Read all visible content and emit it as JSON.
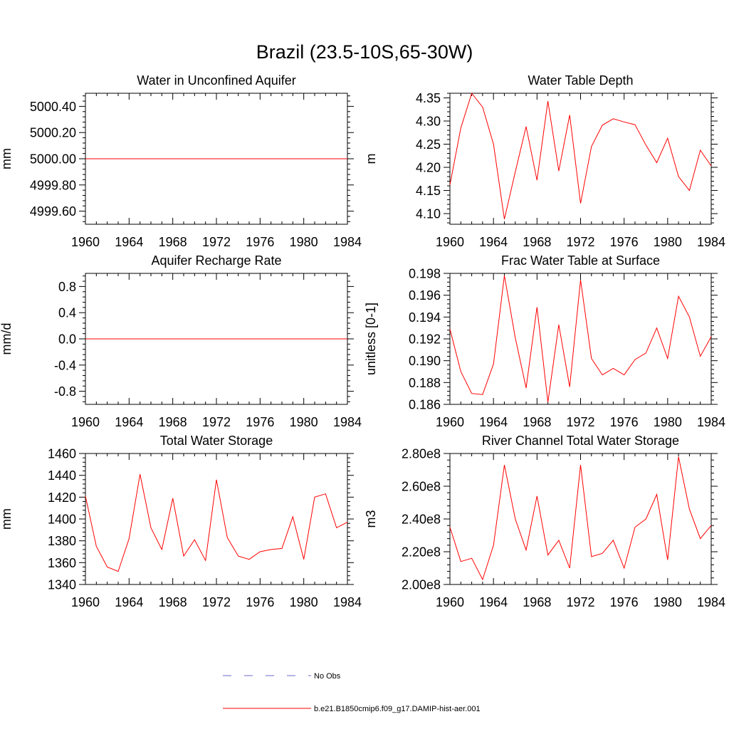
{
  "title": "Brazil (23.5-10S,65-30W)",
  "colors": {
    "model": "#ff0000",
    "obs": "#6a6acd",
    "axis": "#000000"
  },
  "legend": {
    "obs_label": "No Obs",
    "model_label": "b.e21.B1850cmip6.f09_g17.DAMIP-hist-aer.001"
  },
  "chart_data": [
    {
      "type": "line",
      "title": "Water in Unconfined Aquifer",
      "ylabel": "mm",
      "xlim": [
        1960,
        1984
      ],
      "ylim": [
        4999.5,
        5000.5
      ],
      "xticks": [
        1960,
        1964,
        1968,
        1972,
        1976,
        1980,
        1984
      ],
      "yticks": [
        4999.6,
        4999.8,
        5000.0,
        5000.2,
        5000.4
      ],
      "ytick_labels": [
        "4999.60",
        "4999.80",
        "5000.00",
        "5000.20",
        "5000.40"
      ],
      "x": [
        1960,
        1961,
        1962,
        1963,
        1964,
        1965,
        1966,
        1967,
        1968,
        1969,
        1970,
        1971,
        1972,
        1973,
        1974,
        1975,
        1976,
        1977,
        1978,
        1979,
        1980,
        1981,
        1982,
        1983,
        1984
      ],
      "series": [
        {
          "name": "b.e21.B1850cmip6.f09_g17.DAMIP-hist-aer.001",
          "values": [
            5000,
            5000,
            5000,
            5000,
            5000,
            5000,
            5000,
            5000,
            5000,
            5000,
            5000,
            5000,
            5000,
            5000,
            5000,
            5000,
            5000,
            5000,
            5000,
            5000,
            5000,
            5000,
            5000,
            5000,
            5000
          ]
        }
      ]
    },
    {
      "type": "line",
      "title": "Water Table Depth",
      "ylabel": "m",
      "xlim": [
        1960,
        1984
      ],
      "ylim": [
        4.077,
        4.36
      ],
      "xticks": [
        1960,
        1964,
        1968,
        1972,
        1976,
        1980,
        1984
      ],
      "yticks": [
        4.1,
        4.15,
        4.2,
        4.25,
        4.3,
        4.35
      ],
      "ytick_labels": [
        "4.10",
        "4.15",
        "4.20",
        "4.25",
        "4.30",
        "4.35"
      ],
      "x": [
        1960,
        1961,
        1962,
        1963,
        1964,
        1965,
        1966,
        1967,
        1968,
        1969,
        1970,
        1971,
        1972,
        1973,
        1974,
        1975,
        1976,
        1977,
        1978,
        1979,
        1980,
        1981,
        1982,
        1983,
        1984
      ],
      "series": [
        {
          "name": "b.e21.B1850cmip6.f09_g17.DAMIP-hist-aer.001",
          "values": [
            4.162,
            4.285,
            4.36,
            4.33,
            4.25,
            4.088,
            4.19,
            4.288,
            4.172,
            4.343,
            4.192,
            4.313,
            4.122,
            4.245,
            4.291,
            4.305,
            4.298,
            4.292,
            4.248,
            4.21,
            4.263,
            4.18,
            4.15,
            4.237,
            4.203
          ]
        }
      ]
    },
    {
      "type": "line",
      "title": "Aquifer Recharge Rate",
      "ylabel": "mm/d",
      "xlim": [
        1960,
        1984
      ],
      "ylim": [
        -1.0,
        1.0
      ],
      "xticks": [
        1960,
        1964,
        1968,
        1972,
        1976,
        1980,
        1984
      ],
      "yticks": [
        -0.8,
        -0.4,
        0.0,
        0.4,
        0.8
      ],
      "ytick_labels": [
        "-0.8",
        "-0.4",
        "0.0",
        "0.4",
        "0.8"
      ],
      "x": [
        1960,
        1961,
        1962,
        1963,
        1964,
        1965,
        1966,
        1967,
        1968,
        1969,
        1970,
        1971,
        1972,
        1973,
        1974,
        1975,
        1976,
        1977,
        1978,
        1979,
        1980,
        1981,
        1982,
        1983,
        1984
      ],
      "series": [
        {
          "name": "b.e21.B1850cmip6.f09_g17.DAMIP-hist-aer.001",
          "values": [
            0,
            0,
            0,
            0,
            0,
            0,
            0,
            0,
            0,
            0,
            0,
            0,
            0,
            0,
            0,
            0,
            0,
            0,
            0,
            0,
            0,
            0,
            0,
            0,
            0
          ]
        }
      ]
    },
    {
      "type": "line",
      "title": "Frac Water Table at Surface",
      "ylabel": "unitless [0-1]",
      "xlim": [
        1960,
        1984
      ],
      "ylim": [
        0.186,
        0.198
      ],
      "xticks": [
        1960,
        1964,
        1968,
        1972,
        1976,
        1980,
        1984
      ],
      "yticks": [
        0.186,
        0.188,
        0.19,
        0.192,
        0.194,
        0.196,
        0.198
      ],
      "ytick_labels": [
        "0.186",
        "0.188",
        "0.190",
        "0.192",
        "0.194",
        "0.196",
        "0.198"
      ],
      "x": [
        1960,
        1961,
        1962,
        1963,
        1964,
        1965,
        1966,
        1967,
        1968,
        1969,
        1970,
        1971,
        1972,
        1973,
        1974,
        1975,
        1976,
        1977,
        1978,
        1979,
        1980,
        1981,
        1982,
        1983,
        1984
      ],
      "series": [
        {
          "name": "b.e21.B1850cmip6.f09_g17.DAMIP-hist-aer.001",
          "values": [
            0.1929,
            0.189,
            0.187,
            0.1869,
            0.1897,
            0.1978,
            0.1921,
            0.1875,
            0.1949,
            0.1862,
            0.1933,
            0.1876,
            0.1974,
            0.1902,
            0.1887,
            0.1893,
            0.1887,
            0.1901,
            0.1907,
            0.193,
            0.1902,
            0.1959,
            0.194,
            0.1904,
            0.1922
          ]
        }
      ]
    },
    {
      "type": "line",
      "title": "Total Water Storage",
      "ylabel": "mm",
      "xlim": [
        1960,
        1984
      ],
      "ylim": [
        1340,
        1460
      ],
      "xticks": [
        1960,
        1964,
        1968,
        1972,
        1976,
        1980,
        1984
      ],
      "yticks": [
        1340,
        1360,
        1380,
        1400,
        1420,
        1440,
        1460
      ],
      "ytick_labels": [
        "1340",
        "1360",
        "1380",
        "1400",
        "1420",
        "1440",
        "1460"
      ],
      "x": [
        1960,
        1961,
        1962,
        1963,
        1964,
        1965,
        1966,
        1967,
        1968,
        1969,
        1970,
        1971,
        1972,
        1973,
        1974,
        1975,
        1976,
        1977,
        1978,
        1979,
        1980,
        1981,
        1982,
        1983,
        1984
      ],
      "series": [
        {
          "name": "b.e21.B1850cmip6.f09_g17.DAMIP-hist-aer.001",
          "values": [
            1421,
            1375,
            1356,
            1352,
            1382,
            1441,
            1392,
            1372,
            1419,
            1366,
            1381,
            1362,
            1436,
            1383,
            1366,
            1363,
            1370,
            1372,
            1373,
            1402,
            1363,
            1420,
            1423,
            1392,
            1397
          ]
        }
      ]
    },
    {
      "type": "line",
      "title": "River Channel Total Water Storage",
      "ylabel": "m3",
      "xlim": [
        1960,
        1984
      ],
      "ylim": [
        200000000,
        280000000
      ],
      "xticks": [
        1960,
        1964,
        1968,
        1972,
        1976,
        1980,
        1984
      ],
      "yticks": [
        200000000,
        220000000,
        240000000,
        260000000,
        280000000
      ],
      "ytick_labels": [
        "2.00e8",
        "2.20e8",
        "2.40e8",
        "2.60e8",
        "2.80e8"
      ],
      "x": [
        1960,
        1961,
        1962,
        1963,
        1964,
        1965,
        1966,
        1967,
        1968,
        1969,
        1970,
        1971,
        1972,
        1973,
        1974,
        1975,
        1976,
        1977,
        1978,
        1979,
        1980,
        1981,
        1982,
        1983,
        1984
      ],
      "series": [
        {
          "name": "b.e21.B1850cmip6.f09_g17.DAMIP-hist-aer.001",
          "values": [
            235000000,
            214000000,
            216000000,
            203000000,
            224000000,
            273000000,
            240000000,
            221000000,
            254000000,
            218000000,
            227000000,
            210000000,
            273000000,
            217000000,
            219000000,
            227000000,
            210000000,
            235000000,
            240000000,
            255000000,
            215000000,
            278000000,
            246000000,
            228000000,
            236000000
          ]
        }
      ]
    }
  ]
}
